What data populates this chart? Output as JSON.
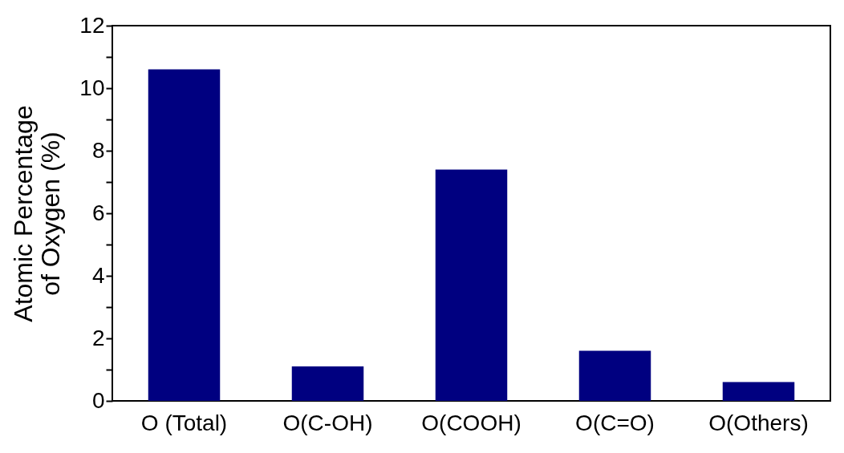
{
  "chart_data": {
    "type": "bar",
    "ylabel": "Atomic Percentage\nof Oxygen (%)",
    "categories": [
      "O (Total)",
      "O(C-OH)",
      "O(COOH)",
      "O(C=O)",
      "O(Others)"
    ],
    "values": [
      10.6,
      1.1,
      7.4,
      1.6,
      0.6
    ],
    "color": "#000080",
    "ylim": [
      0,
      12
    ],
    "yticks": [
      0,
      {
        "value": 1,
        "label": null
      },
      2,
      {
        "value": 3,
        "label": null
      },
      4,
      {
        "value": 5,
        "label": null
      },
      6,
      {
        "value": 7,
        "label": null
      },
      8,
      {
        "value": 9,
        "label": null
      },
      10,
      {
        "value": 11,
        "label": null
      },
      12
    ],
    "grid": false
  }
}
